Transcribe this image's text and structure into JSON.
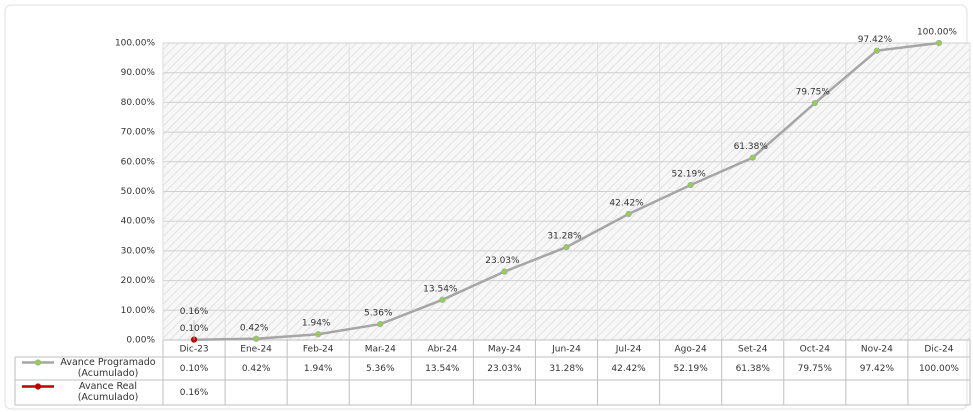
{
  "chart_data": {
    "type": "line",
    "categories": [
      "Dic-23",
      "Ene-24",
      "Feb-24",
      "Mar-24",
      "Abr-24",
      "May-24",
      "Jun-24",
      "Jul-24",
      "Ago-24",
      "Set-24",
      "Oct-24",
      "Nov-24",
      "Dic-24"
    ],
    "series": [
      {
        "name": "Avance Programado (Acumulado)",
        "color": "#a6a6a6",
        "marker_color": "#92d050",
        "values": [
          0.1,
          0.42,
          1.94,
          5.36,
          13.54,
          23.03,
          31.28,
          42.42,
          52.19,
          61.38,
          79.75,
          97.42,
          100.0
        ],
        "value_labels": [
          "0.10%",
          "0.42%",
          "1.94%",
          "5.36%",
          "13.54%",
          "23.03%",
          "31.28%",
          "42.42%",
          "52.19%",
          "61.38%",
          "79.75%",
          "97.42%",
          "100.00%"
        ]
      },
      {
        "name": "Avance Real (Acumulado)",
        "color": "#c00000",
        "marker_color": "#c00000",
        "values": [
          0.16,
          null,
          null,
          null,
          null,
          null,
          null,
          null,
          null,
          null,
          null,
          null,
          null
        ],
        "value_labels": [
          "0.16%",
          null,
          null,
          null,
          null,
          null,
          null,
          null,
          null,
          null,
          null,
          null,
          null
        ]
      }
    ],
    "ylim": [
      0,
      100
    ],
    "yticks": [
      {
        "value": 0,
        "label": "0.00%"
      },
      {
        "value": 10,
        "label": "10.00%"
      },
      {
        "value": 20,
        "label": "20.00%"
      },
      {
        "value": 30,
        "label": "30.00%"
      },
      {
        "value": 40,
        "label": "40.00%"
      },
      {
        "value": 50,
        "label": "50.00%"
      },
      {
        "value": 60,
        "label": "60.00%"
      },
      {
        "value": 70,
        "label": "70.00%"
      },
      {
        "value": 80,
        "label": "80.00%"
      },
      {
        "value": 90,
        "label": "90.00%"
      },
      {
        "value": 100,
        "label": "100.00%"
      }
    ],
    "grid": true,
    "data_table": true
  }
}
